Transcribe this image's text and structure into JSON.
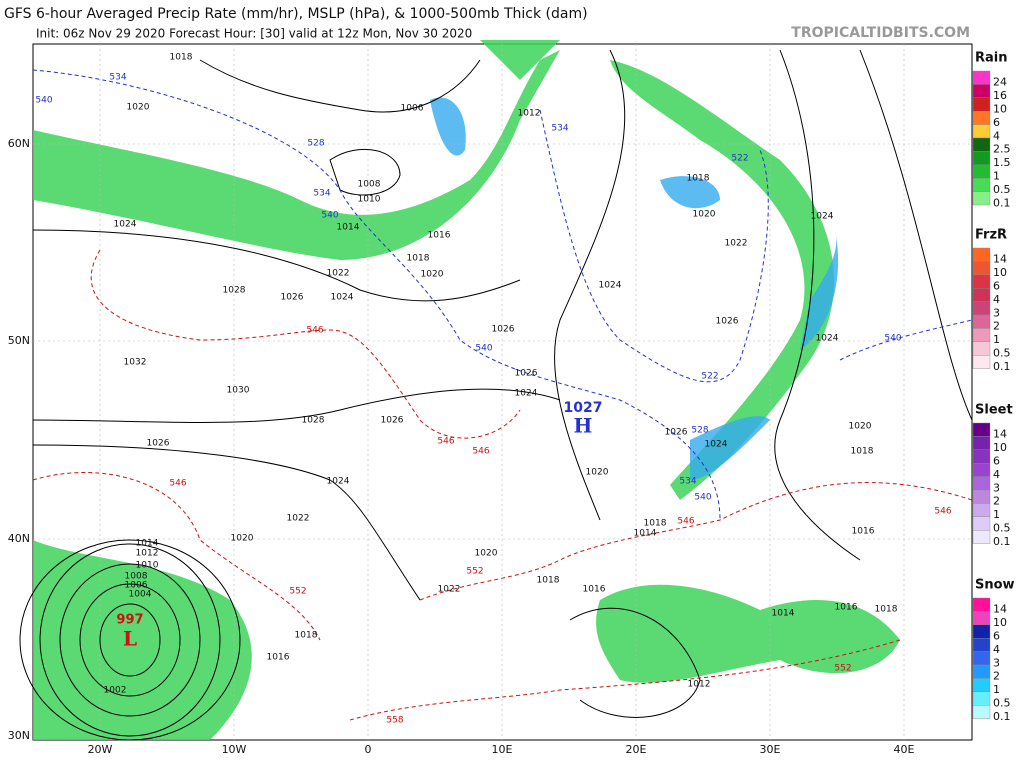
{
  "header": {
    "title": "GFS 6-hour Averaged Precip Rate (mm/hr), MSLP (hPa), & 1000-500mb Thick (dam)",
    "subtitle": "Init: 06z Nov 29 2020   Forecast Hour: [30]   valid at 12z Mon, Nov 30 2020",
    "site": "TROPICALTIDBITS.COM"
  },
  "map": {
    "lat_labels": [
      "60N",
      "50N",
      "40N",
      "30N"
    ],
    "lon_labels": [
      "20W",
      "10W",
      "0",
      "10E",
      "20E",
      "30E",
      "40E"
    ],
    "high": {
      "pressure": "1027",
      "symbol": "H"
    },
    "low": {
      "pressure": "997",
      "symbol": "L"
    },
    "isobar_labels": [
      "1018",
      "1020",
      "1024",
      "1028",
      "1026",
      "1024",
      "1022",
      "1032",
      "1030",
      "1028",
      "1026",
      "1026",
      "1024",
      "1022",
      "1020",
      "1018",
      "1016",
      "1014",
      "1012",
      "1010",
      "1008",
      "1006",
      "1004",
      "1002",
      "1008",
      "1010",
      "1014",
      "1016",
      "1018",
      "1020",
      "1006",
      "1012",
      "1024",
      "1026",
      "1026",
      "1024",
      "1024",
      "1022",
      "1020",
      "1018",
      "1024",
      "1026",
      "1026",
      "1024",
      "1020",
      "1020",
      "1018",
      "1016",
      "1022",
      "1014",
      "1018",
      "1012",
      "1016",
      "1014",
      "1016",
      "1018",
      "1020",
      "1018"
    ],
    "thickness_labels_blue": [
      "534",
      "540",
      "528",
      "534",
      "540",
      "534",
      "522",
      "540",
      "522",
      "528",
      "534",
      "540",
      "540"
    ],
    "thickness_labels_red": [
      "546",
      "546",
      "546",
      "546",
      "552",
      "552",
      "558",
      "552",
      "546",
      "546"
    ]
  },
  "legend": [
    {
      "name": "Rain",
      "labels": [
        "24",
        "16",
        "10",
        "6",
        "4",
        "2.5",
        "1.5",
        "1",
        "0.5",
        "0.1"
      ]
    },
    {
      "name": "FrzR",
      "labels": [
        "14",
        "10",
        "6",
        "4",
        "3",
        "2",
        "1",
        "0.5",
        "0.1"
      ]
    },
    {
      "name": "Sleet",
      "labels": [
        "14",
        "10",
        "6",
        "4",
        "3",
        "2",
        "1",
        "0.5",
        "0.1"
      ]
    },
    {
      "name": "Snow",
      "labels": [
        "14",
        "10",
        "6",
        "4",
        "3",
        "2",
        "1",
        "0.5",
        "0.1"
      ]
    }
  ]
}
